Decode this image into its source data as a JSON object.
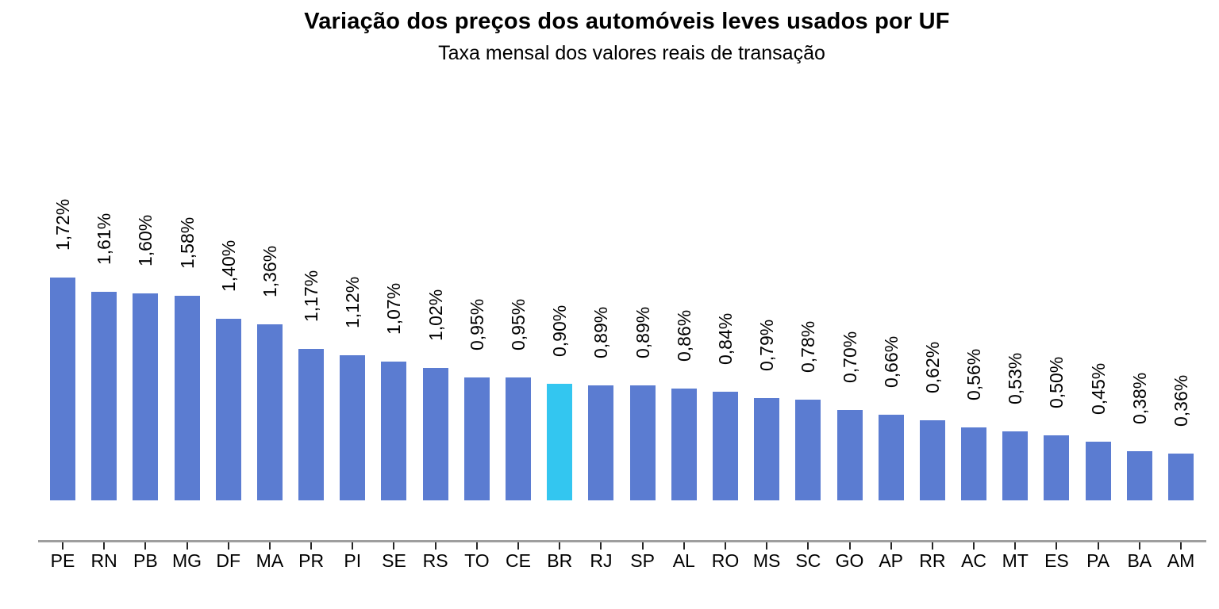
{
  "page": {
    "background": "#ffffff"
  },
  "chart_data": {
    "type": "bar",
    "title": "Variação dos preços dos automóveis leves usados por UF",
    "subtitle": "Taxa mensal dos valores reais de transação",
    "xlabel": "",
    "ylabel": "",
    "grid": false,
    "legend_position": "none",
    "y_axis_visible": false,
    "ylim": [
      0,
      2.6
    ],
    "unit": "%",
    "categories": [
      "PE",
      "RN",
      "PB",
      "MG",
      "DF",
      "MA",
      "PR",
      "PI",
      "SE",
      "RS",
      "TO",
      "CE",
      "BR",
      "RJ",
      "SP",
      "AL",
      "RO",
      "MS",
      "SC",
      "GO",
      "AP",
      "RR",
      "AC",
      "MT",
      "ES",
      "PA",
      "BA",
      "AM"
    ],
    "values": [
      1.72,
      1.61,
      1.6,
      1.58,
      1.4,
      1.36,
      1.17,
      1.12,
      1.07,
      1.02,
      0.95,
      0.95,
      0.9,
      0.89,
      0.89,
      0.86,
      0.84,
      0.79,
      0.78,
      0.7,
      0.66,
      0.62,
      0.56,
      0.53,
      0.5,
      0.45,
      0.38,
      0.36
    ],
    "value_labels": [
      "1,72%",
      "1,61%",
      "1,60%",
      "1,58%",
      "1,40%",
      "1,36%",
      "1,17%",
      "1,12%",
      "1,07%",
      "1,02%",
      "0,95%",
      "0,95%",
      "0,90%",
      "0,89%",
      "0,89%",
      "0,86%",
      "0,84%",
      "0,79%",
      "0,78%",
      "0,70%",
      "0,66%",
      "0,62%",
      "0,56%",
      "0,53%",
      "0,50%",
      "0,45%",
      "0,38%",
      "0,36%"
    ],
    "highlight_category": "BR",
    "colors": {
      "bar": "#5B7CD1",
      "highlight": "#33C6F0",
      "axis_line": "#9E9E9E",
      "tick": "#262626",
      "text": "#000000"
    }
  }
}
